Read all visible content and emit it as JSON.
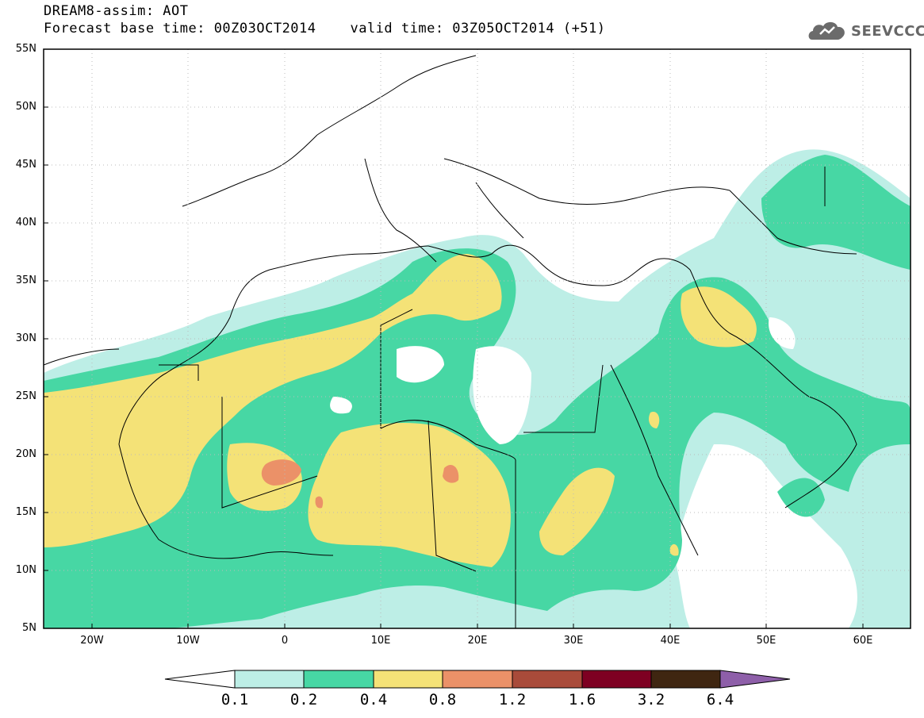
{
  "header": {
    "line1": "DREAM8-assim: AOT",
    "forecast_base": "Forecast base time: 00Z03OCT2014",
    "valid_time": "valid time: 03Z05OCT2014 (+51)"
  },
  "logo": {
    "text": "SEEVCCC",
    "icon": "cloud-icon"
  },
  "axes": {
    "y_ticks": [
      "55N",
      "50N",
      "45N",
      "40N",
      "35N",
      "30N",
      "25N",
      "20N",
      "15N",
      "10N",
      "5N"
    ],
    "x_ticks": [
      "20W",
      "10W",
      "0",
      "10E",
      "20E",
      "30E",
      "40E",
      "50E",
      "60E"
    ]
  },
  "colorbar": {
    "labels": [
      "0.1",
      "0.2",
      "0.4",
      "0.8",
      "1.2",
      "1.6",
      "3.2",
      "6.4"
    ],
    "colors": [
      "#ffffff",
      "#bdeee6",
      "#47d7a4",
      "#f4e277",
      "#eb9168",
      "#a94b3a",
      "#7e0022",
      "#3f2611",
      "#8e5fa9"
    ]
  },
  "map": {
    "lon_range": [
      -25,
      65
    ],
    "lat_range": [
      5,
      55
    ],
    "field": "AOT"
  }
}
